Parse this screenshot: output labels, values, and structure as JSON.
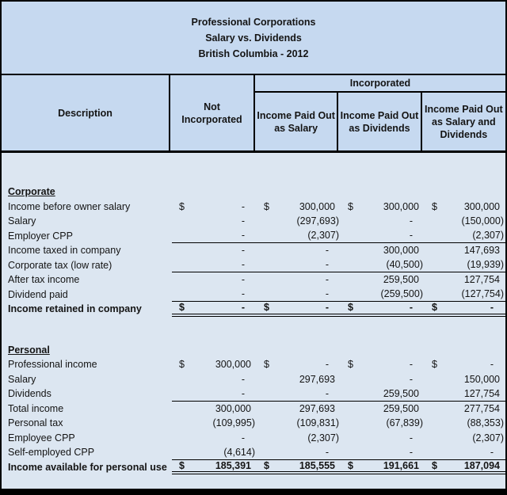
{
  "title": {
    "lines": [
      "Professional Corporations",
      "Salary vs. Dividends",
      "British Columbia - 2012"
    ]
  },
  "header": {
    "description": "Description",
    "not_incorporated": "Not Incorporated",
    "incorporated": "Incorporated",
    "sub_columns": [
      "Income Paid Out as Salary",
      "Income Paid Out as Dividends",
      "Income Paid Out as Salary and Dividends"
    ]
  },
  "table": {
    "sections": [
      {
        "name": "Corporate",
        "rows": [
          {
            "label": "Income before owner salary",
            "dollar": true,
            "bold": false,
            "line": null,
            "values": [
              "-",
              "300,000",
              "300,000",
              "300,000"
            ]
          },
          {
            "label": "Salary",
            "dollar": false,
            "bold": false,
            "line": null,
            "values": [
              "-",
              "(297,693)",
              "-",
              "(150,000)"
            ]
          },
          {
            "label": "Employer CPP",
            "dollar": false,
            "bold": false,
            "line": "single",
            "values": [
              "-",
              "(2,307)",
              "-",
              "(2,307)"
            ]
          },
          {
            "label": "Income taxed in company",
            "dollar": false,
            "bold": false,
            "line": null,
            "values": [
              "-",
              "-",
              "300,000",
              "147,693"
            ]
          },
          {
            "label": "Corporate tax (low rate)",
            "dollar": false,
            "bold": false,
            "line": "single",
            "values": [
              "-",
              "-",
              "(40,500)",
              "(19,939)"
            ]
          },
          {
            "label": "After tax income",
            "dollar": false,
            "bold": false,
            "line": null,
            "values": [
              "-",
              "-",
              "259,500",
              "127,754"
            ]
          },
          {
            "label": "Dividend paid",
            "dollar": false,
            "bold": false,
            "line": "single",
            "values": [
              "-",
              "-",
              "(259,500)",
              "(127,754)"
            ]
          },
          {
            "label": "Income retained in company",
            "dollar": true,
            "bold": true,
            "line": "double",
            "values": [
              "-",
              "-",
              "-",
              "-"
            ]
          }
        ]
      },
      {
        "name": "Personal",
        "rows": [
          {
            "label": "Professional income",
            "dollar": true,
            "bold": false,
            "line": null,
            "values": [
              "300,000",
              "-",
              "-",
              "-"
            ]
          },
          {
            "label": "Salary",
            "dollar": false,
            "bold": false,
            "line": null,
            "values": [
              "-",
              "297,693",
              "-",
              "150,000"
            ]
          },
          {
            "label": "Dividends",
            "dollar": false,
            "bold": false,
            "line": "single",
            "values": [
              "-",
              "-",
              "259,500",
              "127,754"
            ]
          },
          {
            "label": "Total income",
            "dollar": false,
            "bold": false,
            "line": null,
            "values": [
              "300,000",
              "297,693",
              "259,500",
              "277,754"
            ]
          },
          {
            "label": "Personal tax",
            "dollar": false,
            "bold": false,
            "line": null,
            "values": [
              "(109,995)",
              "(109,831)",
              "(67,839)",
              "(88,353)"
            ]
          },
          {
            "label": "Employee CPP",
            "dollar": false,
            "bold": false,
            "line": null,
            "values": [
              "-",
              "(2,307)",
              "-",
              "(2,307)"
            ]
          },
          {
            "label": "Self-employed CPP",
            "dollar": false,
            "bold": false,
            "line": "single",
            "values": [
              "(4,614)",
              "-",
              "-",
              "-"
            ]
          },
          {
            "label": "Income available for personal use",
            "dollar": true,
            "bold": true,
            "line": "double",
            "values": [
              "185,391",
              "185,555",
              "191,661",
              "187,094"
            ]
          }
        ]
      }
    ]
  },
  "colors": {
    "band_background": "#c6d9f0",
    "data_background": "#dce6f1",
    "frame_border": "#000000",
    "text": "#141414"
  }
}
